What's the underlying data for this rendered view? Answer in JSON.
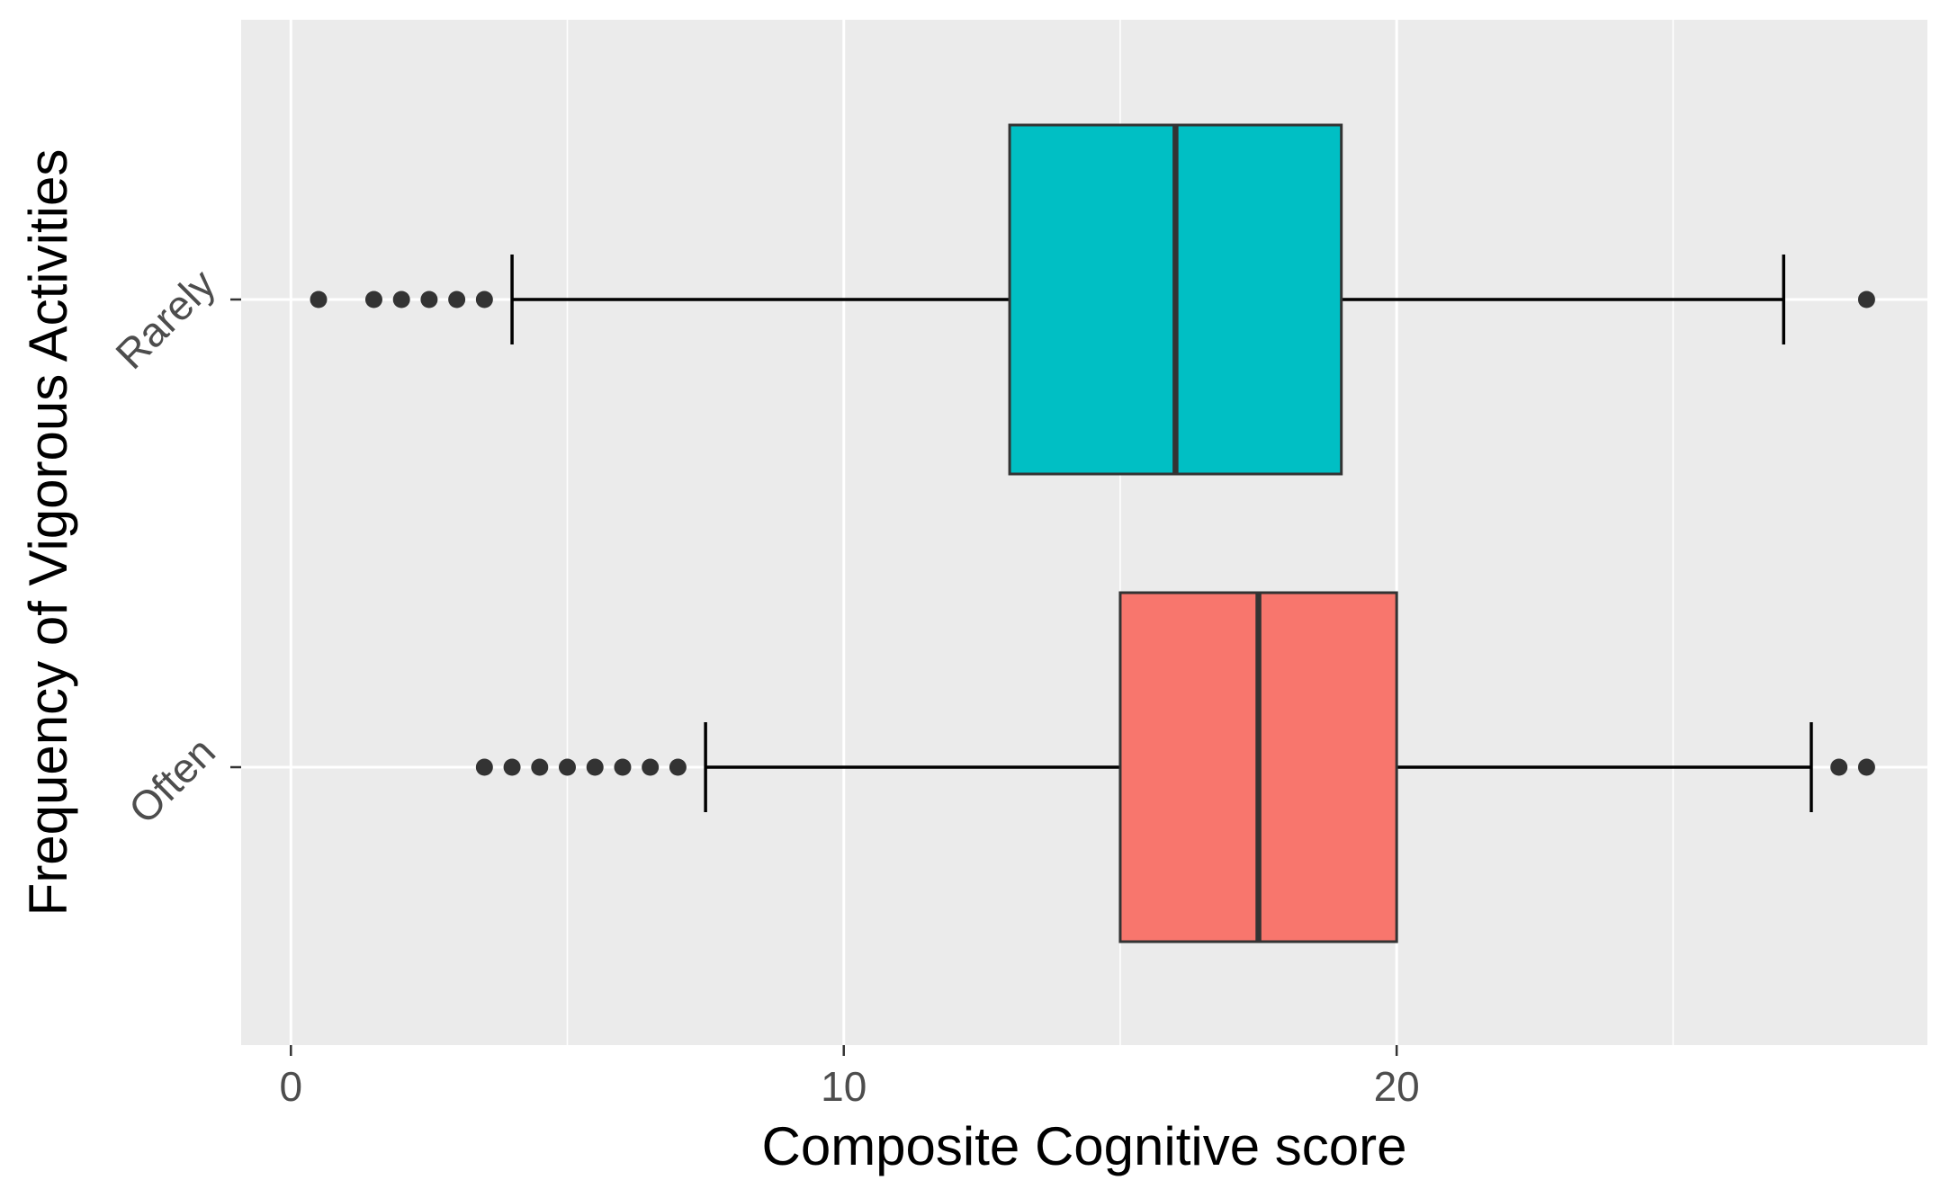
{
  "chart_data": {
    "type": "boxplot",
    "orientation": "horizontal",
    "title": "",
    "xlabel": "Composite Cognitive score",
    "ylabel": "Frequency of Vigorous Activities",
    "xlim": [
      -0.9,
      29.6
    ],
    "x_ticks": [
      0,
      10,
      20
    ],
    "grid": true,
    "legend": "none",
    "categories": [
      "Rarely",
      "Often"
    ],
    "boxes": [
      {
        "category": "Rarely",
        "fill": "#00BFC4",
        "whisker_low": 4,
        "q1": 13,
        "median": 16,
        "q3": 19,
        "whisker_high": 27,
        "outliers": [
          0.5,
          1.5,
          2,
          2.5,
          3,
          3.5,
          28.5
        ]
      },
      {
        "category": "Often",
        "fill": "#F8766D",
        "whisker_low": 7.5,
        "q1": 15,
        "median": 17.5,
        "q3": 20,
        "whisker_high": 27.5,
        "outliers": [
          3.5,
          4,
          4.5,
          5,
          5.5,
          6,
          6.5,
          7,
          28,
          28.5
        ]
      }
    ],
    "colors": {
      "panel_background": "#EBEBEB",
      "grid_line": "#FFFFFF",
      "box_outline": "#333333",
      "outlier_point": "#333333",
      "whisker": "#000000"
    }
  }
}
